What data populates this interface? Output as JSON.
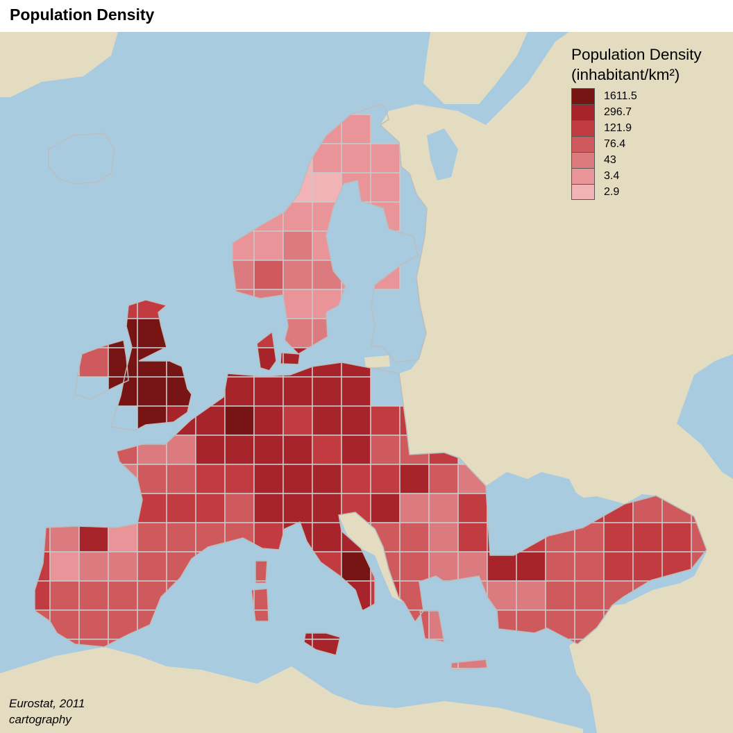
{
  "title": "Population Density",
  "legend": {
    "title_line1": "Population Density",
    "title_line2": "(inhabitant/km²)",
    "classes": [
      {
        "label": "1611.5",
        "color": "#771414"
      },
      {
        "label": "296.7",
        "color": "#a6242a"
      },
      {
        "label": "121.9",
        "color": "#c23b40"
      },
      {
        "label": "76.4",
        "color": "#cf5a5e"
      },
      {
        "label": "43",
        "color": "#dc7b7f"
      },
      {
        "label": "3.4",
        "color": "#e89499"
      },
      {
        "label": "2.9",
        "color": "#f2b3b7"
      }
    ]
  },
  "source": {
    "line1": "Eurostat, 2011",
    "line2": "cartography"
  },
  "colors": {
    "sea": "#a8cbe0",
    "land": "#e3dcc1",
    "grid": "#c9c9c9"
  }
}
